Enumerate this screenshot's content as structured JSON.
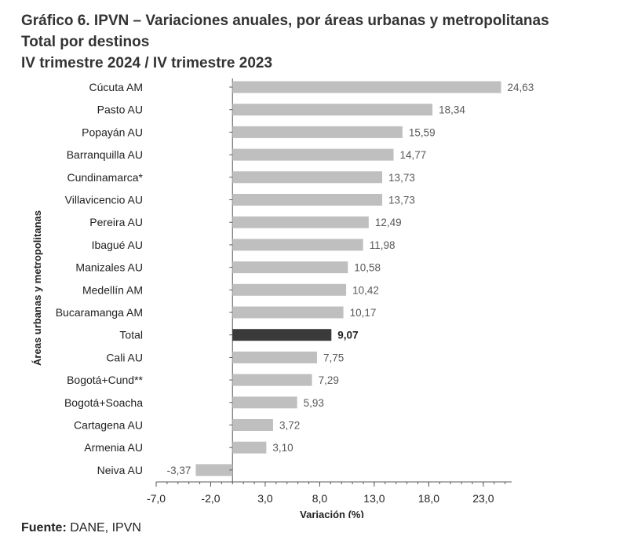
{
  "titles": {
    "line1": "Gráfico 6. IPVN – Variaciones anuales, por áreas urbanas y metropolitanas",
    "line2": "Total por destinos",
    "line3": "IV trimestre 2024 / IV trimestre 2023"
  },
  "source": {
    "label": "Fuente:",
    "text": " DANE, IPVN"
  },
  "chart_data": {
    "type": "bar",
    "orientation": "horizontal",
    "ylabel": "Áreas urbanas y metropolitanas",
    "xlabel": "Variación (%)",
    "xlim": [
      -7.0,
      25.6
    ],
    "xticks": [
      -7.0,
      -2.0,
      3.0,
      8.0,
      13.0,
      18.0,
      23.0
    ],
    "xtick_labels": [
      "-7,0",
      "-2,0",
      "3,0",
      "8,0",
      "13,0",
      "18,0",
      "23,0"
    ],
    "grid": false,
    "categories": [
      "Cúcuta AM",
      "Pasto AU",
      "Popayán AU",
      "Barranquilla AU",
      "Cundinamarca*",
      "Villavicencio AU",
      "Pereira AU",
      "Ibagué AU",
      "Manizales AU",
      "Medellín AM",
      "Bucaramanga AM",
      "Total",
      "Cali AU",
      "Bogotá+Cund**",
      "Bogotá+Soacha",
      "Cartagena AU",
      "Armenia AU",
      "Neiva AU"
    ],
    "values": [
      24.63,
      18.34,
      15.59,
      14.77,
      13.73,
      13.73,
      12.49,
      11.98,
      10.58,
      10.42,
      10.17,
      9.07,
      7.75,
      7.29,
      5.93,
      3.72,
      3.1,
      -3.37
    ],
    "value_labels": [
      "24,63",
      "18,34",
      "15,59",
      "14,77",
      "13,73",
      "13,73",
      "12,49",
      "11,98",
      "10,58",
      "10,42",
      "10,17",
      "9,07",
      "7,75",
      "7,29",
      "5,93",
      "3,72",
      "3,10",
      "-3,37"
    ],
    "highlight_category": "Total",
    "colors": {
      "bar": "#bfbfbf",
      "highlight": "#3a3a3a",
      "axis": "#595959",
      "label": "#595959"
    }
  }
}
